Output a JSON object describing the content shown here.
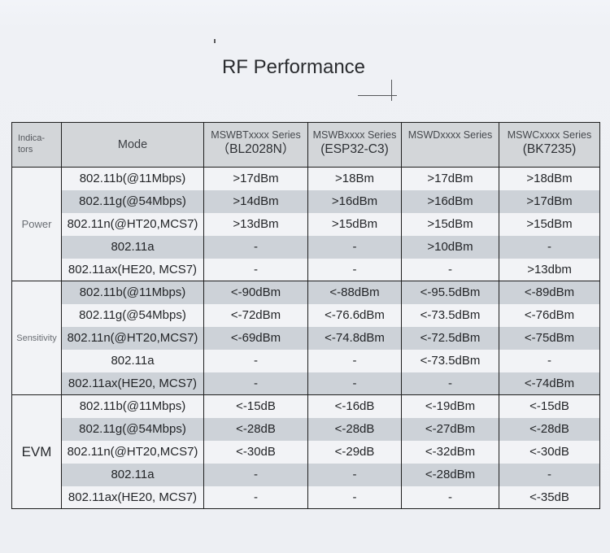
{
  "page": {
    "title": "RF Performance"
  },
  "table": {
    "header": {
      "indicators_line1": "Indica-",
      "indicators_line2": "tors",
      "mode_label": "Mode",
      "columns": [
        {
          "series": "MSWBTxxxx Series",
          "chip": "（BL2028N）"
        },
        {
          "series": "MSWBxxxx Series",
          "chip": "(ESP32-C3)"
        },
        {
          "series": "MSWDxxxx Series",
          "chip": ""
        },
        {
          "series": "MSWCxxxx Series",
          "chip": "(BK7235)"
        }
      ]
    },
    "sections": [
      {
        "indicator": "Power",
        "rows": [
          {
            "mode": "802.11b(@11Mbps)",
            "values": [
              ">17dBm",
              ">18Bm",
              ">17dBm",
              ">18dBm"
            ]
          },
          {
            "mode": "802.11g(@54Mbps)",
            "values": [
              ">14dBm",
              ">16dBm",
              ">16dBm",
              ">17dBm"
            ]
          },
          {
            "mode": "802.11n(@HT20,MCS7)",
            "values": [
              ">13dBm",
              ">15dBm",
              ">15dBm",
              ">15dBm"
            ]
          },
          {
            "mode": "802.11a",
            "values": [
              "-",
              "-",
              ">10dBm",
              "-"
            ]
          },
          {
            "mode": "802.11ax(HE20, MCS7)",
            "values": [
              "-",
              "-",
              "-",
              ">13dbm"
            ]
          }
        ]
      },
      {
        "indicator": "Sensitivity",
        "rows": [
          {
            "mode": "802.11b(@11Mbps)",
            "values": [
              "<-90dBm",
              "<-88dBm",
              "<-95.5dBm",
              "<-89dBm"
            ]
          },
          {
            "mode": "802.11g(@54Mbps)",
            "values": [
              "<-72dBm",
              "<-76.6dBm",
              "<-73.5dBm",
              "<-76dBm"
            ]
          },
          {
            "mode": "802.11n(@HT20,MCS7)",
            "values": [
              "<-69dBm",
              "<-74.8dBm",
              "<-72.5dBm",
              "<-75dBm"
            ]
          },
          {
            "mode": "802.11a",
            "values": [
              "-",
              "-",
              "<-73.5dBm",
              "-"
            ]
          },
          {
            "mode": "802.11ax(HE20, MCS7)",
            "values": [
              "-",
              "-",
              "-",
              "<-74dBm"
            ]
          }
        ]
      },
      {
        "indicator": "EVM",
        "rows": [
          {
            "mode": "802.11b(@11Mbps)",
            "values": [
              "<-15dB",
              "<-16dB",
              "<-19dBm",
              "<-15dB"
            ]
          },
          {
            "mode": "802.11g(@54Mbps)",
            "values": [
              "<-28dB",
              "<-28dB",
              "<-27dBm",
              "<-28dB"
            ]
          },
          {
            "mode": "802.11n(@HT20,MCS7)",
            "values": [
              "<-30dB",
              "<-29dB",
              "<-32dBm",
              "<-30dB"
            ]
          },
          {
            "mode": "802.11a",
            "values": [
              "-",
              "-",
              "<-28dBm",
              "-"
            ]
          },
          {
            "mode": "802.11ax(HE20, MCS7)",
            "values": [
              "-",
              "-",
              "-",
              "<-35dB"
            ]
          }
        ]
      }
    ],
    "colors": {
      "header_bg": "#d3d6d9",
      "row_light": "#f2f3f6",
      "row_gray": "#cdd2d8",
      "border": "#1e1e1e"
    }
  }
}
